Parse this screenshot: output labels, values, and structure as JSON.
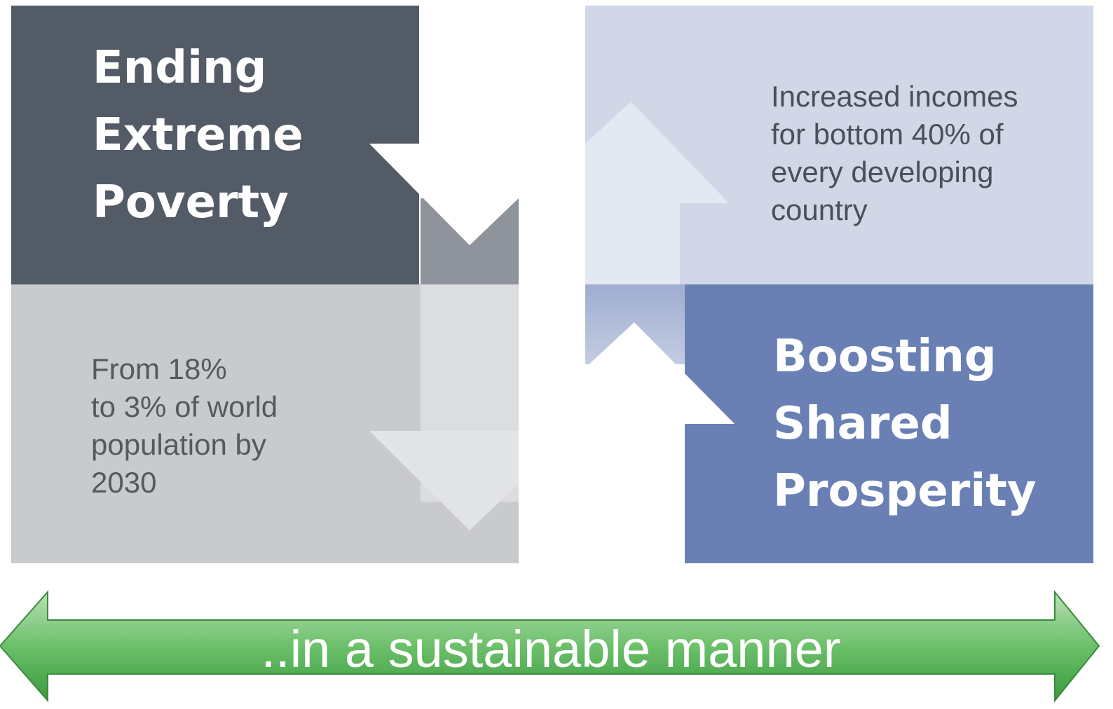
{
  "left": {
    "title": [
      "Ending",
      "Extreme",
      "Poverty"
    ],
    "description": [
      "From 18%",
      "to 3% of world",
      "population by",
      "2030"
    ]
  },
  "right": {
    "description": [
      "Increased incomes",
      "for bottom 40% of",
      "every developing",
      "country"
    ],
    "title": [
      "Boosting",
      "Shared",
      "Prosperity"
    ]
  },
  "banner": "..in a sustainable manner"
}
